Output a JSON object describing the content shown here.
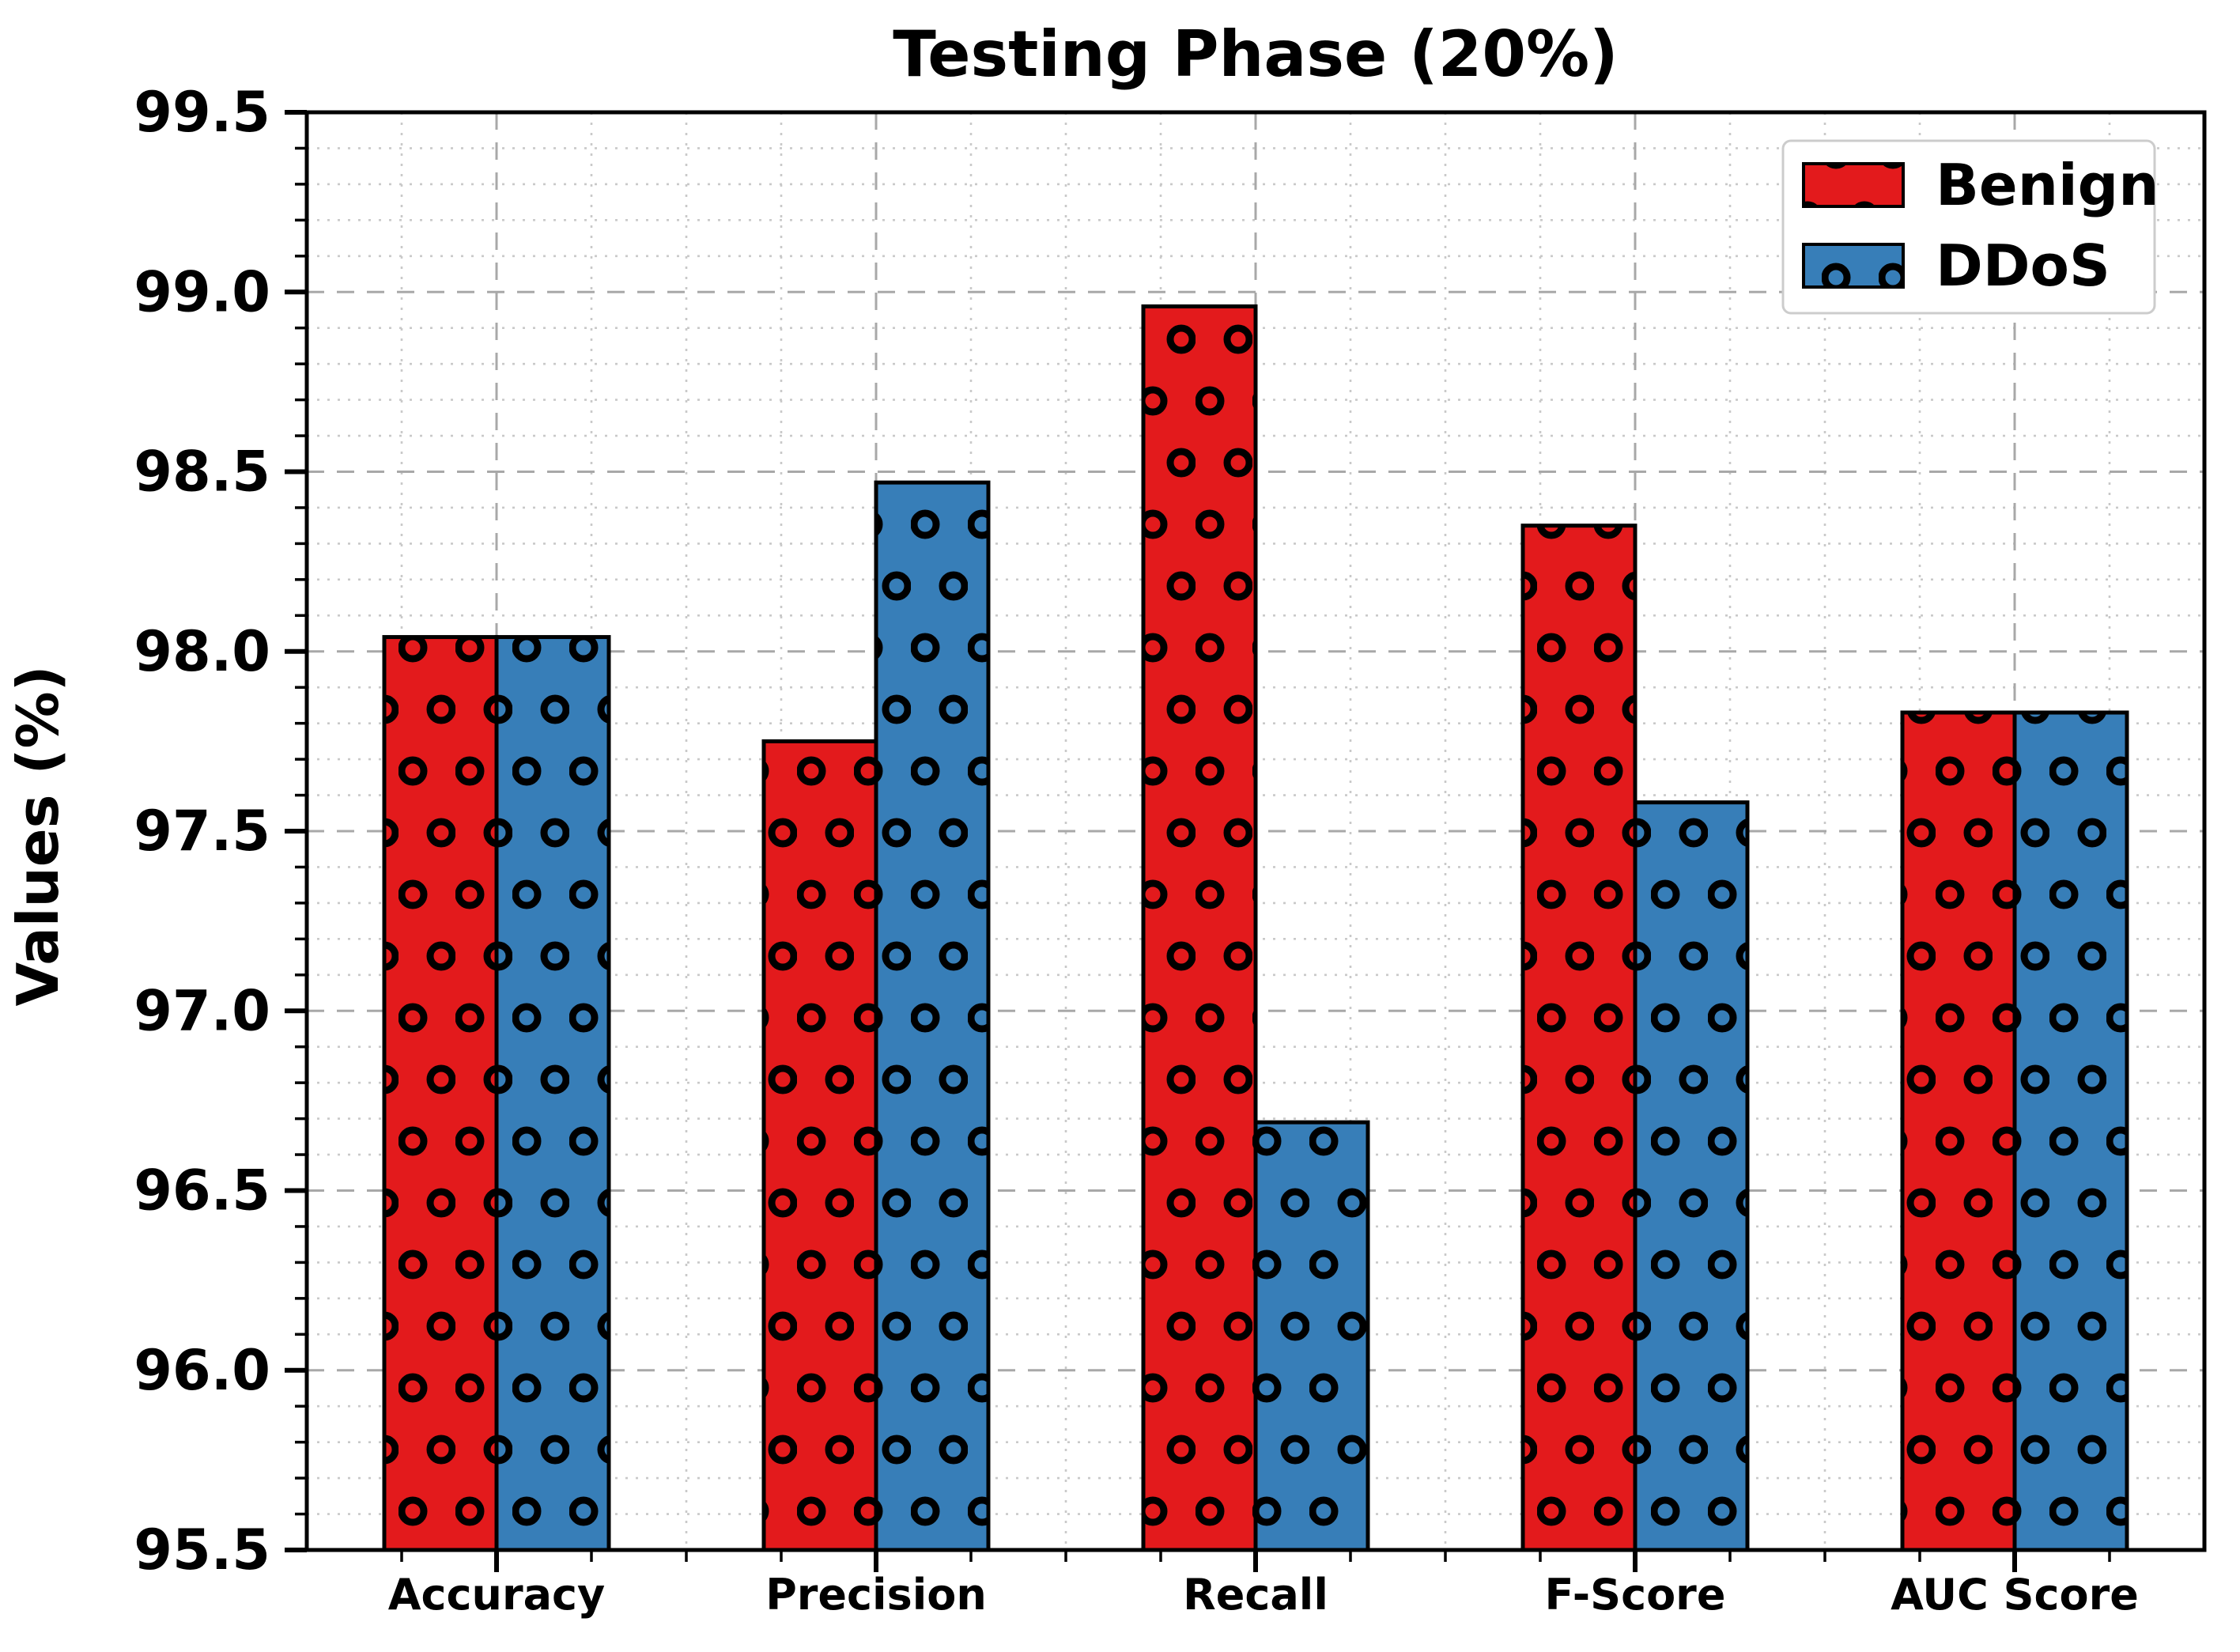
{
  "chart_data": {
    "type": "bar",
    "title": "Testing Phase (20%)",
    "ylabel": "Values (%)",
    "categories": [
      "Accuracy",
      "Precision",
      "Recall",
      "F-Score",
      "AUC Score"
    ],
    "series": [
      {
        "name": "Benign",
        "color": "#e31a1c",
        "hatch": "o",
        "values": [
          98.04,
          97.75,
          98.96,
          98.35,
          97.83
        ]
      },
      {
        "name": "DDoS",
        "color": "#377eb8",
        "hatch": "o",
        "values": [
          98.04,
          98.47,
          96.69,
          97.58,
          97.83
        ]
      }
    ],
    "ylim": [
      95.5,
      99.5
    ],
    "ytick_step": 0.5,
    "ytick_minor_step": 0.1,
    "ytick_labels": [
      "95.5",
      "96.0",
      "96.5",
      "97.0",
      "97.5",
      "98.0",
      "98.5",
      "99.0",
      "99.5"
    ],
    "grid": {
      "major": true,
      "minor": true,
      "major_color": "#a8a8a8",
      "minor_color": "#c9c9c9"
    },
    "legend": {
      "position": "upper right",
      "entries": [
        "Benign",
        "DDoS"
      ]
    },
    "style": {
      "bar_edge_color": "#000000",
      "spine_color": "#000000",
      "legend_border_color": "#cccccc",
      "legend_background": "#ffffff",
      "text_color": "#000000"
    }
  }
}
